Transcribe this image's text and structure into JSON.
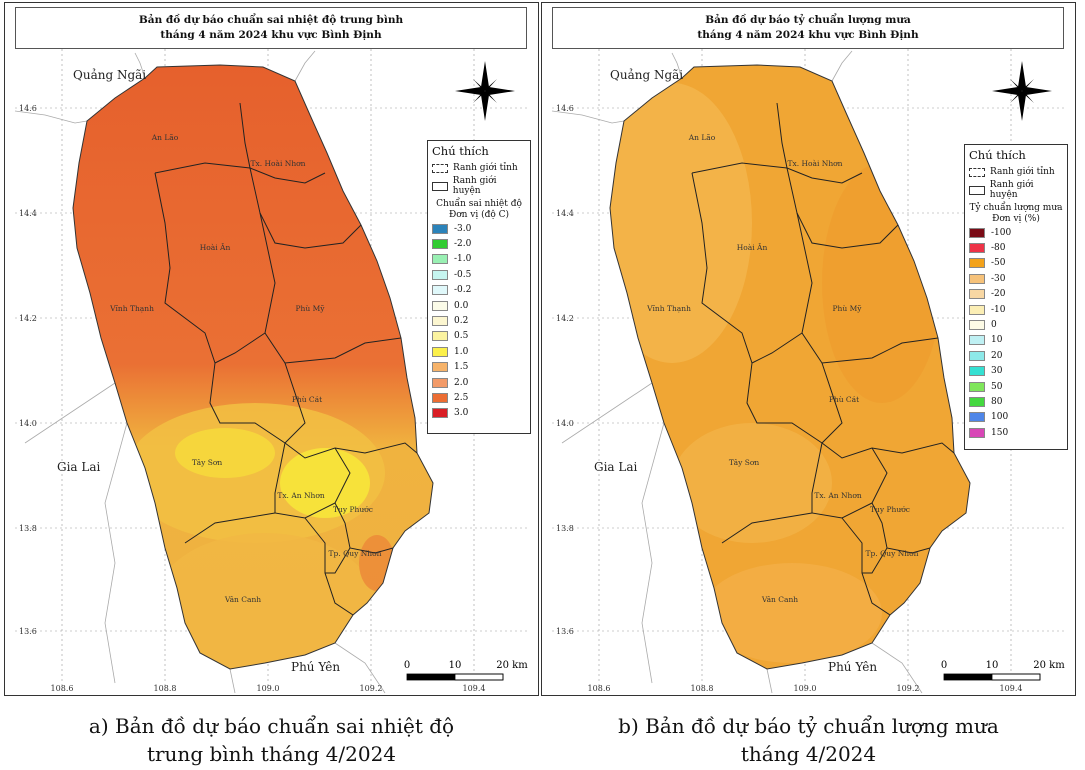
{
  "panels": [
    {
      "title_line1": "Bản đồ dự báo chuẩn sai nhiệt độ trung bình",
      "title_line2": "tháng 4 năm 2024 khu vực Bình Định",
      "legend": {
        "title": "Chú thích",
        "line1": "Ranh giới tỉnh",
        "line2": "Ranh giới huyện",
        "sub1": "Chuẩn sai nhiệt độ",
        "sub2": "Đơn vị (độ C)",
        "items": [
          {
            "label": "-3.0",
            "color": "#2b83ba"
          },
          {
            "label": "-2.0",
            "color": "#33cc33"
          },
          {
            "label": "-1.0",
            "color": "#99f0b3"
          },
          {
            "label": "-0.5",
            "color": "#c6f5f0"
          },
          {
            "label": "-0.2",
            "color": "#e0f8fa"
          },
          {
            "label": "0.0",
            "color": "#fbfbe8"
          },
          {
            "label": "0.2",
            "color": "#fcf6d0"
          },
          {
            "label": "0.5",
            "color": "#fbf3a0"
          },
          {
            "label": "1.0",
            "color": "#fbf04a"
          },
          {
            "label": "1.5",
            "color": "#f6b36a"
          },
          {
            "label": "2.0",
            "color": "#f29a68"
          },
          {
            "label": "2.5",
            "color": "#ec6d33"
          },
          {
            "label": "3.0",
            "color": "#d91e25"
          }
        ]
      },
      "caption_line1": "a) Bản đồ dự báo chuẩn sai nhiệt độ",
      "caption_line2": "trung bình tháng 4/2024"
    },
    {
      "title_line1": "Bản đồ dự báo tỷ chuẩn lượng mưa",
      "title_line2": "tháng 4 năm 2024 khu vực Bình Định",
      "legend": {
        "title": "Chú thích",
        "line1": "Ranh giới tỉnh",
        "line2": "Ranh giới huyện",
        "sub1": "Tỷ chuẩn lượng mưa",
        "sub2": "Đơn vị (%)",
        "items": [
          {
            "label": "-100",
            "color": "#7a0b16"
          },
          {
            "label": "-80",
            "color": "#ee3347"
          },
          {
            "label": "-50",
            "color": "#f3a21a"
          },
          {
            "label": "-30",
            "color": "#f6c27a"
          },
          {
            "label": "-20",
            "color": "#f8d7a3"
          },
          {
            "label": "-10",
            "color": "#fbeeb5"
          },
          {
            "label": "0",
            "color": "#fdfbe6"
          },
          {
            "label": "10",
            "color": "#bff0f3"
          },
          {
            "label": "20",
            "color": "#8de9e9"
          },
          {
            "label": "30",
            "color": "#35e0d2"
          },
          {
            "label": "50",
            "color": "#7fe65b"
          },
          {
            "label": "80",
            "color": "#44d83f"
          },
          {
            "label": "100",
            "color": "#4f86e8"
          },
          {
            "label": "150",
            "color": "#d846b6"
          }
        ]
      },
      "caption_line1": "b) Bản đồ dự báo tỷ chuẩn lượng mưa",
      "caption_line2": "tháng 4/2024"
    }
  ],
  "map_labels": {
    "neighbors": {
      "north": "Quảng Ngãi",
      "west": "Gia Lai",
      "south": "Phú Yên"
    },
    "districts": {
      "an_lao": "An Lão",
      "hoai_nhon": "Tx. Hoài Nhơn",
      "hoai_an": "Hoài Ân",
      "vinh_thanh": "Vĩnh Thạnh",
      "phu_my": "Phù Mỹ",
      "phu_cat": "Phù Cát",
      "tay_son": "Tây Sơn",
      "an_nhon": "Tx. An Nhơn",
      "tuy_phuoc": "Tuy Phước",
      "quy_nhon": "Tp. Quy Nhơn",
      "van_canh": "Vân Canh"
    },
    "lat_ticks": [
      "14.6",
      "14.4",
      "14.2",
      "14.0",
      "13.8",
      "13.6"
    ],
    "lon_ticks": [
      "108.6",
      "108.8",
      "109.0",
      "109.2",
      "109.4"
    ],
    "scale": {
      "zero": "0",
      "mid": "10",
      "end": "20 km"
    }
  },
  "map_colors": {
    "temp_north": "#e8662e",
    "temp_south": "#f0b33f",
    "temp_center": "#f7e23a",
    "rain_base": "#f0a634",
    "rain_light": "#f4b74e"
  }
}
